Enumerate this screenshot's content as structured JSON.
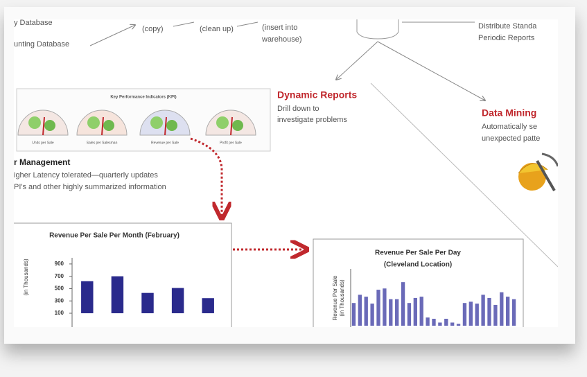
{
  "top": {
    "sources": [
      "y Database",
      "unting Database"
    ],
    "steps": [
      "(copy)",
      "(clean up)",
      "(insert into",
      "warehouse)"
    ],
    "distribute": [
      "Distribute Standa",
      "Periodic Reports"
    ]
  },
  "dynamic_reports": {
    "title": "Dynamic Reports",
    "lines": [
      "Drill down to",
      "investigate problems"
    ]
  },
  "data_mining": {
    "title": "Data Mining",
    "lines": [
      "Automatically se",
      "unexpected patte"
    ]
  },
  "kpi": {
    "title": "Key Performance Indicators (KPI)",
    "gauges": [
      "Units per Sale",
      "Sales per Salesman",
      "Revenue per Sale",
      "Profit per Sale"
    ]
  },
  "management": {
    "title": "r Management",
    "lines": [
      "igher Latency tolerated—quarterly updates",
      "PI's and other highly summarized information"
    ]
  },
  "chart_data": [
    {
      "type": "bar",
      "title": "Revenue Per Sale Per Month (February)",
      "y_label": "(in Thousands)",
      "values": [
        620,
        700,
        430,
        510,
        345
      ],
      "ylim": [
        100,
        1000
      ],
      "yticks": [
        900,
        700,
        500,
        300,
        100
      ],
      "color": "#2a2a8c"
    },
    {
      "type": "bar",
      "title": "Revenue Per Sale Per Day",
      "subtitle": "(Cleveland Location)",
      "y_label": [
        "Revenue Per Sale",
        "(in Thousands)"
      ],
      "values": [
        3.6,
        4.9,
        4.6,
        3.5,
        5.7,
        5.9,
        4.2,
        4.2,
        6.9,
        3.6,
        4.4,
        4.6,
        1.3,
        1.1,
        0.5,
        1.1,
        0.5,
        0.3,
        3.6,
        3.8,
        3.5,
        4.9,
        4.4,
        3.3,
        5.3,
        4.6,
        4.2
      ],
      "ylim": [
        0,
        9
      ],
      "color": "#6a6ab8"
    }
  ]
}
